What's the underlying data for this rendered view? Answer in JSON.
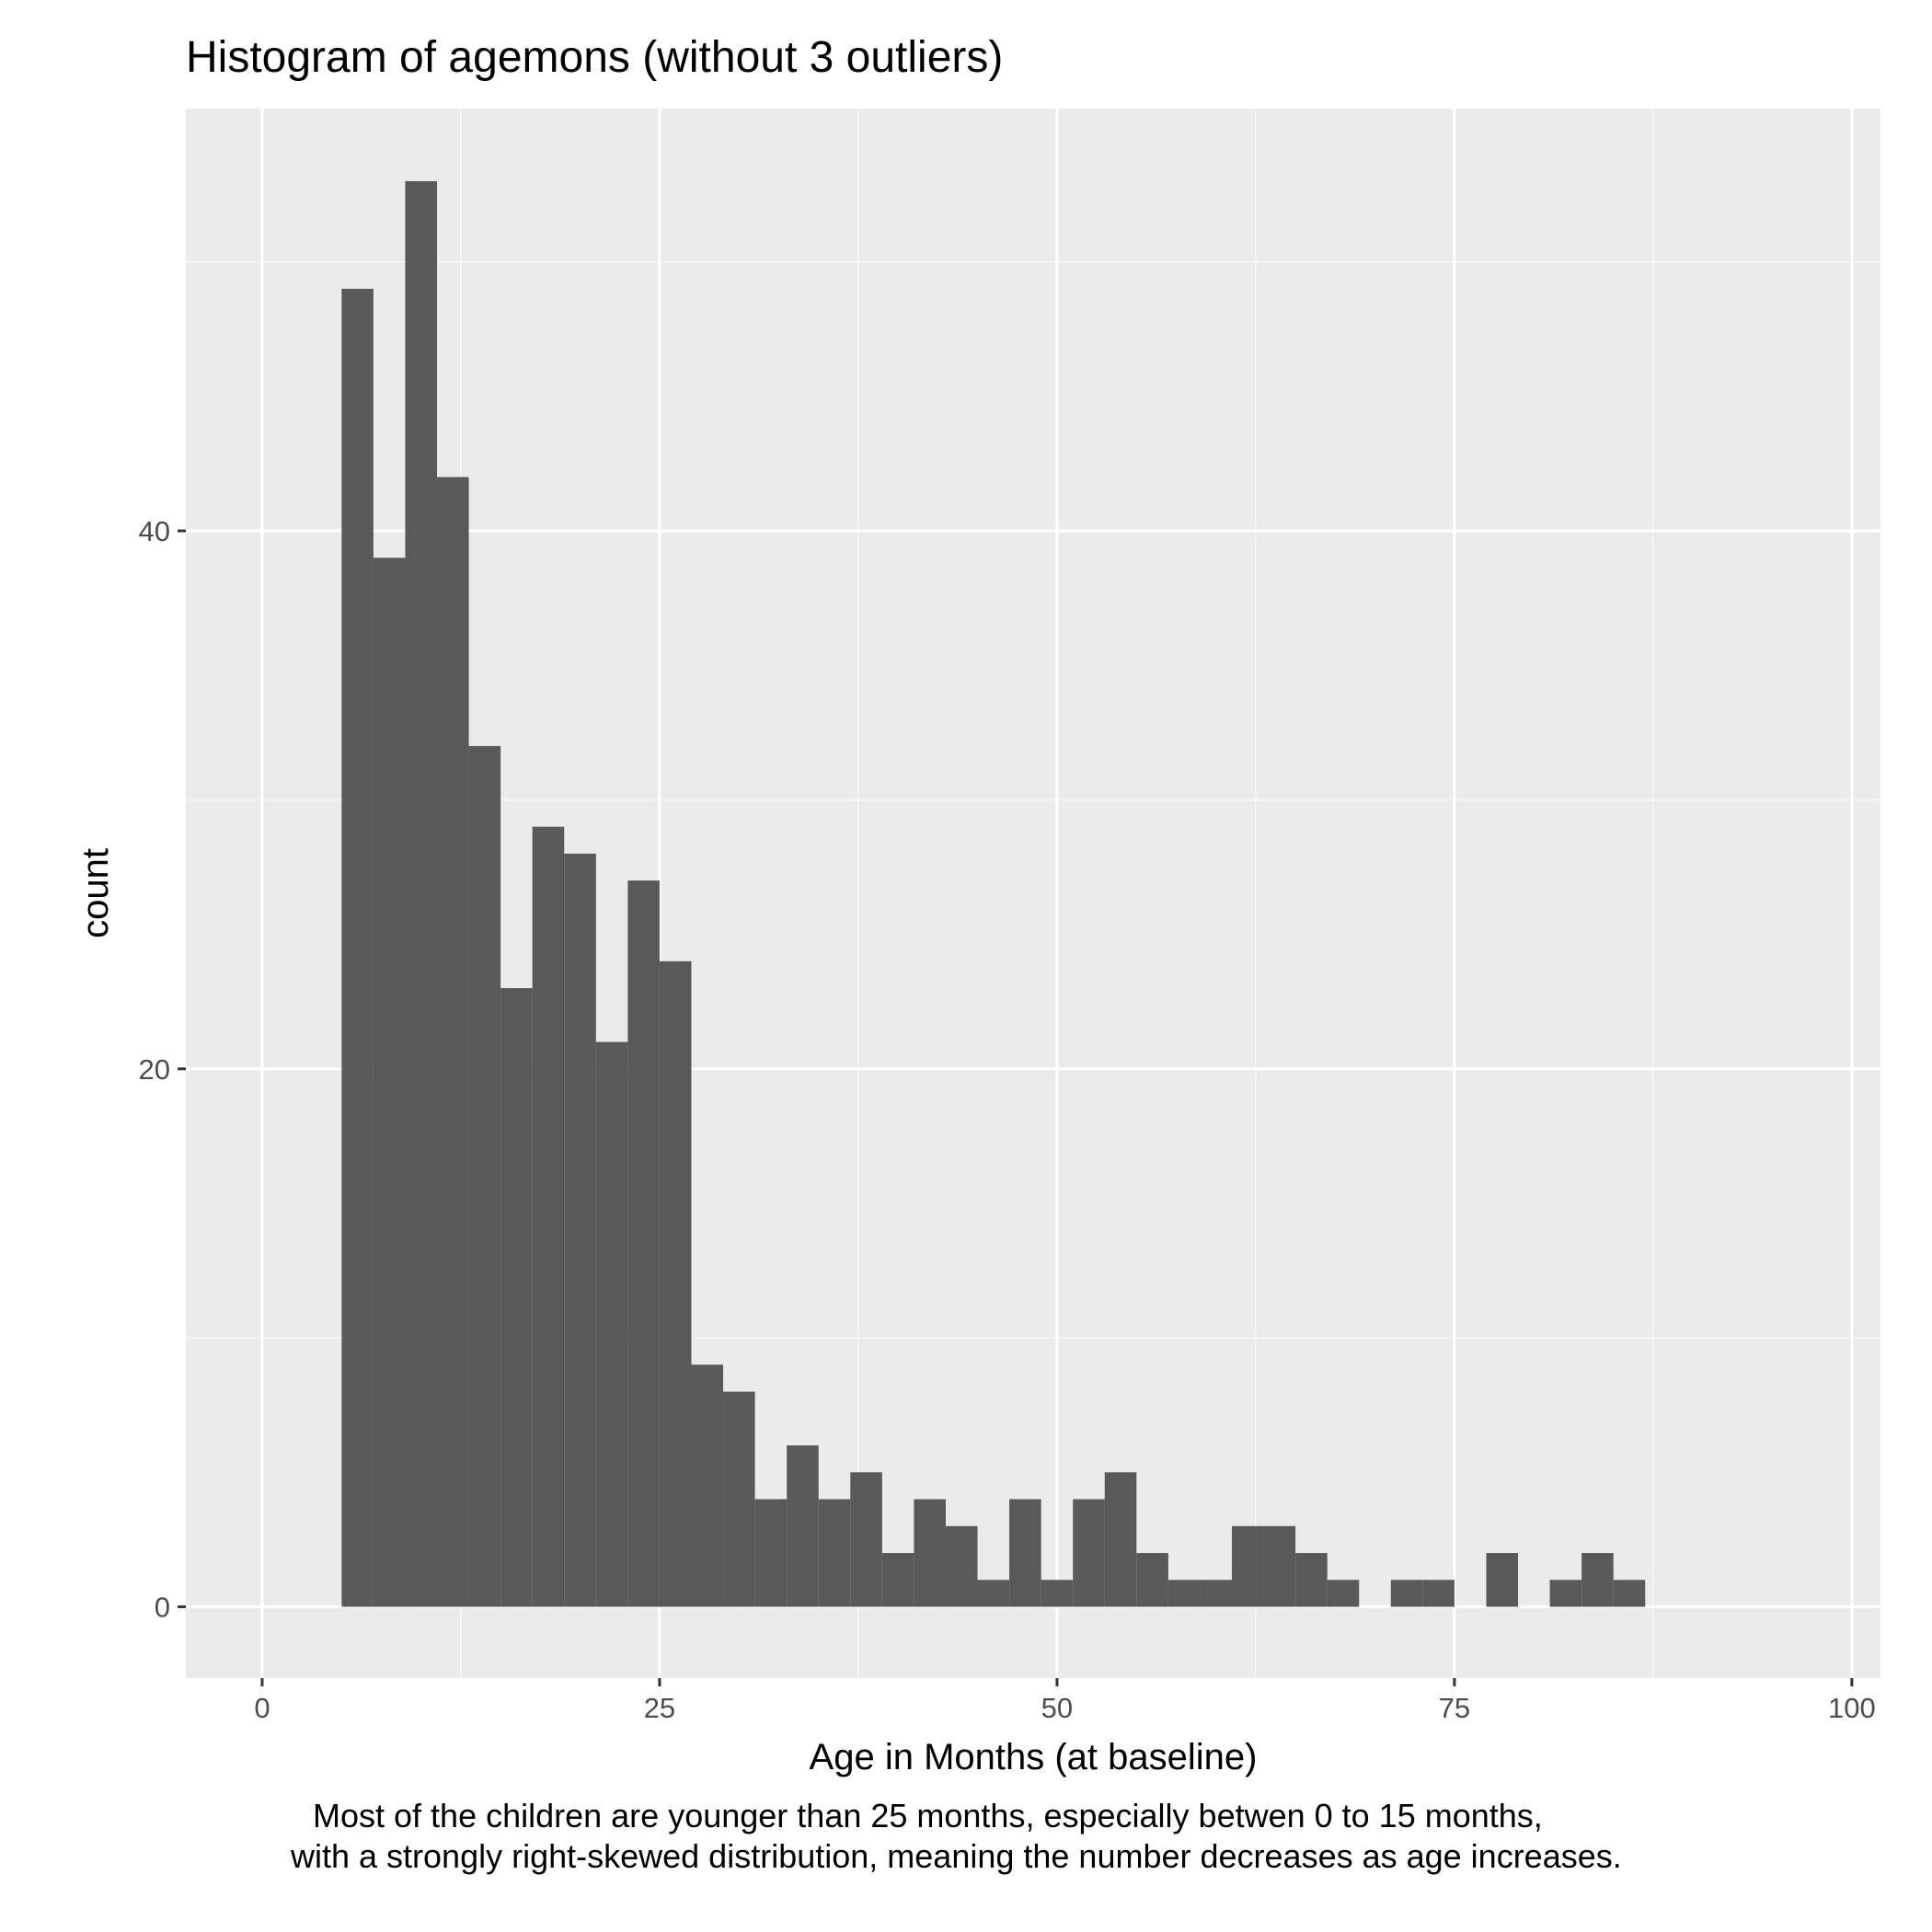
{
  "chart_data": {
    "type": "bar",
    "title": "Histogram of agemons (without 3 outliers)",
    "xlabel": "Age in Months (at baseline)",
    "ylabel": "count",
    "caption": [
      "Most of the children are younger than 25 months, especially betwen 0 to 15 months,",
      "with a strongly right-skewed distribution, meaning the number decreases as age increases."
    ],
    "xlim": [
      -4.8,
      101.8
    ],
    "ylim": [
      -2.65,
      55.7
    ],
    "x_ticks": [
      0,
      25,
      50,
      75,
      100
    ],
    "y_ticks": [
      0,
      20,
      40
    ],
    "x_tick_labels": [
      "0",
      "25",
      "50",
      "75",
      "100"
    ],
    "y_tick_labels": [
      "0",
      "20",
      "40"
    ],
    "grid": true,
    "bin_width": 2,
    "bin_starts": [
      5,
      7,
      9,
      11,
      13,
      15,
      17,
      19,
      21,
      23,
      25,
      27,
      29,
      31,
      33,
      35,
      37,
      39,
      41,
      43,
      45,
      47,
      49,
      51,
      53,
      55,
      57,
      59,
      61,
      63,
      65,
      67,
      69,
      71,
      73,
      75,
      77,
      79,
      81,
      83,
      85
    ],
    "values": [
      49,
      39,
      53,
      42,
      32,
      23,
      29,
      28,
      21,
      27,
      24,
      9,
      8,
      4,
      6,
      4,
      5,
      2,
      4,
      3,
      1,
      4,
      1,
      4,
      5,
      2,
      1,
      1,
      3,
      3,
      2,
      1,
      0,
      1,
      1,
      0,
      2,
      0,
      1,
      2,
      1
    ]
  },
  "colors": {
    "panel_background": "#ebebeb",
    "grid_major": "#ffffff",
    "grid_minor": "#f7f7f7",
    "bar_fill": "#595959",
    "tick_color": "#333333",
    "tick_label_color": "#4d4d4d",
    "text_color": "#000000"
  }
}
